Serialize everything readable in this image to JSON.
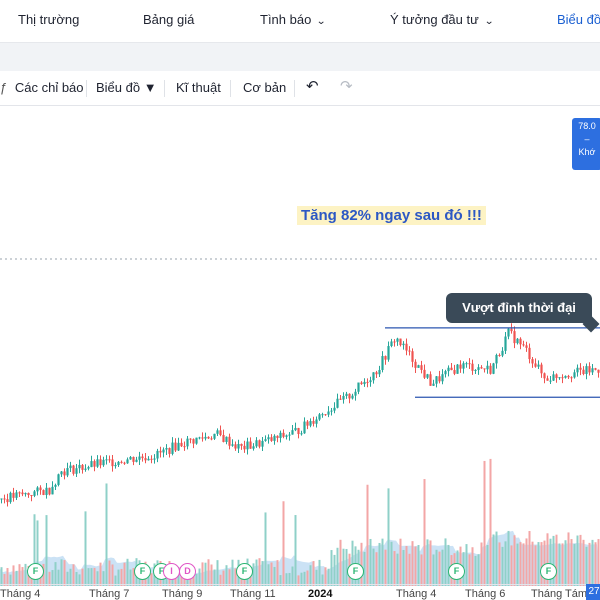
{
  "nav": {
    "items": [
      {
        "label": "Thị trường",
        "has_chevron": false
      },
      {
        "label": "Bảng giá",
        "has_chevron": false
      },
      {
        "label": "Tình báo",
        "has_chevron": true
      },
      {
        "label": "Ý tưởng đầu tư",
        "has_chevron": true
      },
      {
        "label": "Biểu đồ",
        "active": true
      }
    ]
  },
  "toolbar": {
    "indicators_label": "Các chỉ báo",
    "chart_type_label": "Biểu đồ ▼",
    "technical_label": "Kĩ thuật",
    "fundamental_label": "Cơ bản",
    "undo_icon": "undo-icon",
    "redo_icon": "redo-icon"
  },
  "price_tag": {
    "value": "78.0",
    "line2": "–",
    "line3": "Khớ"
  },
  "annotations": {
    "gain_text": "Tăng 82% ngay sau đó !!!",
    "ath_text": "Vượt đỉnh thời đại"
  },
  "events": [
    {
      "kind": "F"
    },
    {
      "kind": "F"
    },
    {
      "kind": "F"
    },
    {
      "kind": "I"
    },
    {
      "kind": "D"
    },
    {
      "kind": "F"
    },
    {
      "kind": "F"
    },
    {
      "kind": "F"
    },
    {
      "kind": "F"
    }
  ],
  "chart_data": {
    "type": "candlestick",
    "x_labels": [
      "Tháng 4",
      "Tháng 7",
      "Tháng 9",
      "Tháng 11",
      "2024",
      "Tháng 4",
      "Tháng 6",
      "Tháng Tám",
      "27"
    ],
    "x_label_bold": "2024",
    "trend": {
      "points": [
        {
          "t": 0,
          "p": 38
        },
        {
          "t": 0.08,
          "p": 40
        },
        {
          "t": 0.1,
          "p": 44
        },
        {
          "t": 0.18,
          "p": 46
        },
        {
          "t": 0.26,
          "p": 47.5
        },
        {
          "t": 0.3,
          "p": 50
        },
        {
          "t": 0.36,
          "p": 52
        },
        {
          "t": 0.4,
          "p": 49
        },
        {
          "t": 0.46,
          "p": 51
        },
        {
          "t": 0.5,
          "p": 53
        },
        {
          "t": 0.53,
          "p": 56
        },
        {
          "t": 0.58,
          "p": 60
        },
        {
          "t": 0.63,
          "p": 66
        },
        {
          "t": 0.66,
          "p": 73
        },
        {
          "t": 0.69,
          "p": 68
        },
        {
          "t": 0.72,
          "p": 63
        },
        {
          "t": 0.77,
          "p": 67
        },
        {
          "t": 0.82,
          "p": 66
        },
        {
          "t": 0.85,
          "p": 74
        },
        {
          "t": 0.88,
          "p": 70
        },
        {
          "t": 0.91,
          "p": 64
        },
        {
          "t": 0.94,
          "p": 65
        },
        {
          "t": 1.0,
          "p": 66
        }
      ]
    },
    "channel": {
      "top": 75,
      "bottom": 60
    },
    "ath_level": 90,
    "colors": {
      "up": "#26a69a",
      "down": "#ef5350",
      "volume_up": "#8fd0c8",
      "volume_down": "#f3a6a6",
      "volume_ma": "#a9cfee",
      "channel": "#2b56b0",
      "ath": "#9aa3ad"
    }
  }
}
